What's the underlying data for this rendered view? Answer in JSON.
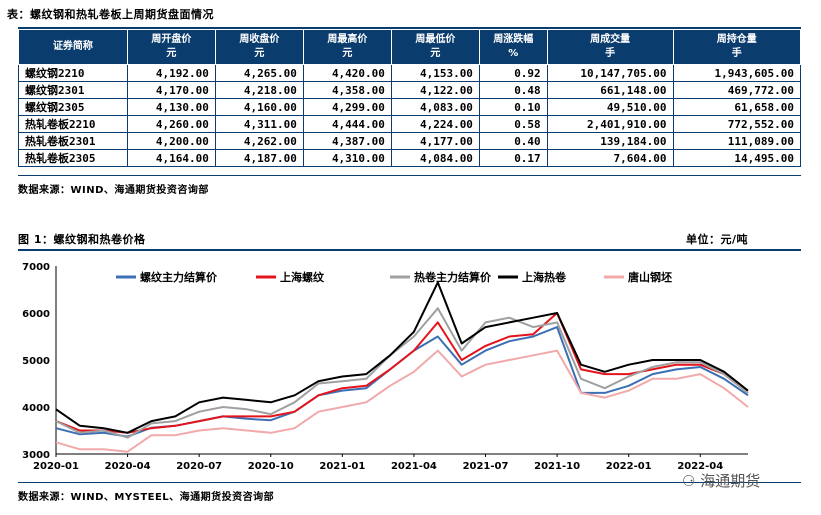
{
  "table": {
    "caption": "表：螺纹钢和热轧卷板上周期货盘面情况",
    "columns": [
      [
        "证券简称",
        ""
      ],
      [
        "周开盘价",
        "元"
      ],
      [
        "周收盘价",
        "元"
      ],
      [
        "周最高价",
        "元"
      ],
      [
        "周最低价",
        "元"
      ],
      [
        "周涨跌幅",
        "%"
      ],
      [
        "周成交量",
        "手"
      ],
      [
        "周持仓量",
        "手"
      ]
    ],
    "rows": [
      [
        "螺纹钢2210",
        "4,192.00",
        "4,265.00",
        "4,420.00",
        "4,153.00",
        "0.92",
        "10,147,705.00",
        "1,943,605.00"
      ],
      [
        "螺纹钢2301",
        "4,170.00",
        "4,218.00",
        "4,358.00",
        "4,122.00",
        "0.48",
        "661,148.00",
        "469,772.00"
      ],
      [
        "螺纹钢2305",
        "4,130.00",
        "4,160.00",
        "4,299.00",
        "4,083.00",
        "0.10",
        "49,510.00",
        "61,658.00"
      ],
      [
        "热轧卷板2210",
        "4,260.00",
        "4,311.00",
        "4,444.00",
        "4,224.00",
        "0.58",
        "2,401,910.00",
        "772,552.00"
      ],
      [
        "热轧卷板2301",
        "4,200.00",
        "4,262.00",
        "4,387.00",
        "4,177.00",
        "0.40",
        "139,184.00",
        "111,089.00"
      ],
      [
        "热轧卷板2305",
        "4,164.00",
        "4,187.00",
        "4,310.00",
        "4,084.00",
        "0.17",
        "7,604.00",
        "14,495.00"
      ]
    ],
    "source": "数据来源：WIND、海通期货投资咨询部"
  },
  "figure": {
    "caption": "图 1：螺纹钢和热卷价格",
    "unit": "单位：元/吨",
    "source": "数据来源：WIND、MYSTEEL、海通期货投资咨询部"
  },
  "watermark": "海通期货",
  "chart_data": {
    "type": "line",
    "ylim": [
      3000,
      7000
    ],
    "yticks": [
      3000,
      4000,
      5000,
      6000,
      7000
    ],
    "xlim": [
      "2020-01",
      "2022-06"
    ],
    "xticks": [
      "2020-01",
      "2020-04",
      "2020-07",
      "2020-10",
      "2021-01",
      "2021-04",
      "2021-07",
      "2021-10",
      "2022-01",
      "2022-04"
    ],
    "grid": false,
    "legend": "top",
    "x": [
      "2020-01",
      "2020-02",
      "2020-03",
      "2020-04",
      "2020-05",
      "2020-06",
      "2020-07",
      "2020-08",
      "2020-09",
      "2020-10",
      "2020-11",
      "2020-12",
      "2021-01",
      "2021-02",
      "2021-03",
      "2021-04",
      "2021-05",
      "2021-06",
      "2021-07",
      "2021-08",
      "2021-09",
      "2021-10",
      "2021-11",
      "2021-12",
      "2022-01",
      "2022-02",
      "2022-03",
      "2022-04",
      "2022-05",
      "2022-06"
    ],
    "series": [
      {
        "name": "螺纹主力结算价",
        "color": "#3d6fb5",
        "values": [
          3550,
          3420,
          3450,
          3370,
          3560,
          3600,
          3700,
          3800,
          3750,
          3720,
          3900,
          4250,
          4350,
          4400,
          4800,
          5200,
          5500,
          4900,
          5200,
          5400,
          5500,
          5700,
          4300,
          4300,
          4450,
          4700,
          4800,
          4850,
          4600,
          4250
        ]
      },
      {
        "name": "上海螺纹",
        "color": "#e3141b",
        "values": [
          3700,
          3500,
          3500,
          3450,
          3550,
          3600,
          3700,
          3800,
          3800,
          3800,
          3900,
          4250,
          4400,
          4450,
          4800,
          5200,
          5800,
          5000,
          5300,
          5500,
          5550,
          6000,
          4800,
          4700,
          4700,
          4800,
          4900,
          4900,
          4700,
          4300
        ]
      },
      {
        "name": "热卷主力结算价",
        "color": "#a0a0a0",
        "values": [
          3700,
          3450,
          3500,
          3350,
          3650,
          3700,
          3900,
          4000,
          3950,
          3850,
          4100,
          4500,
          4550,
          4600,
          5100,
          5500,
          6100,
          5200,
          5800,
          5900,
          5700,
          5800,
          4600,
          4400,
          4650,
          4850,
          4950,
          4950,
          4700,
          4300
        ]
      },
      {
        "name": "上海热卷",
        "color": "#000000",
        "values": [
          3950,
          3600,
          3550,
          3450,
          3700,
          3800,
          4100,
          4200,
          4150,
          4100,
          4250,
          4550,
          4650,
          4700,
          5100,
          5600,
          6650,
          5350,
          5700,
          5800,
          5900,
          6000,
          4900,
          4750,
          4900,
          5000,
          5000,
          5000,
          4750,
          4350
        ]
      },
      {
        "name": "唐山钢坯",
        "color": "#f2a9aa",
        "values": [
          3250,
          3100,
          3100,
          3050,
          3400,
          3400,
          3500,
          3550,
          3500,
          3450,
          3550,
          3900,
          4000,
          4100,
          4450,
          4750,
          5200,
          4650,
          4900,
          5000,
          5100,
          5200,
          4300,
          4200,
          4350,
          4600,
          4600,
          4700,
          4400,
          4000
        ]
      }
    ]
  }
}
